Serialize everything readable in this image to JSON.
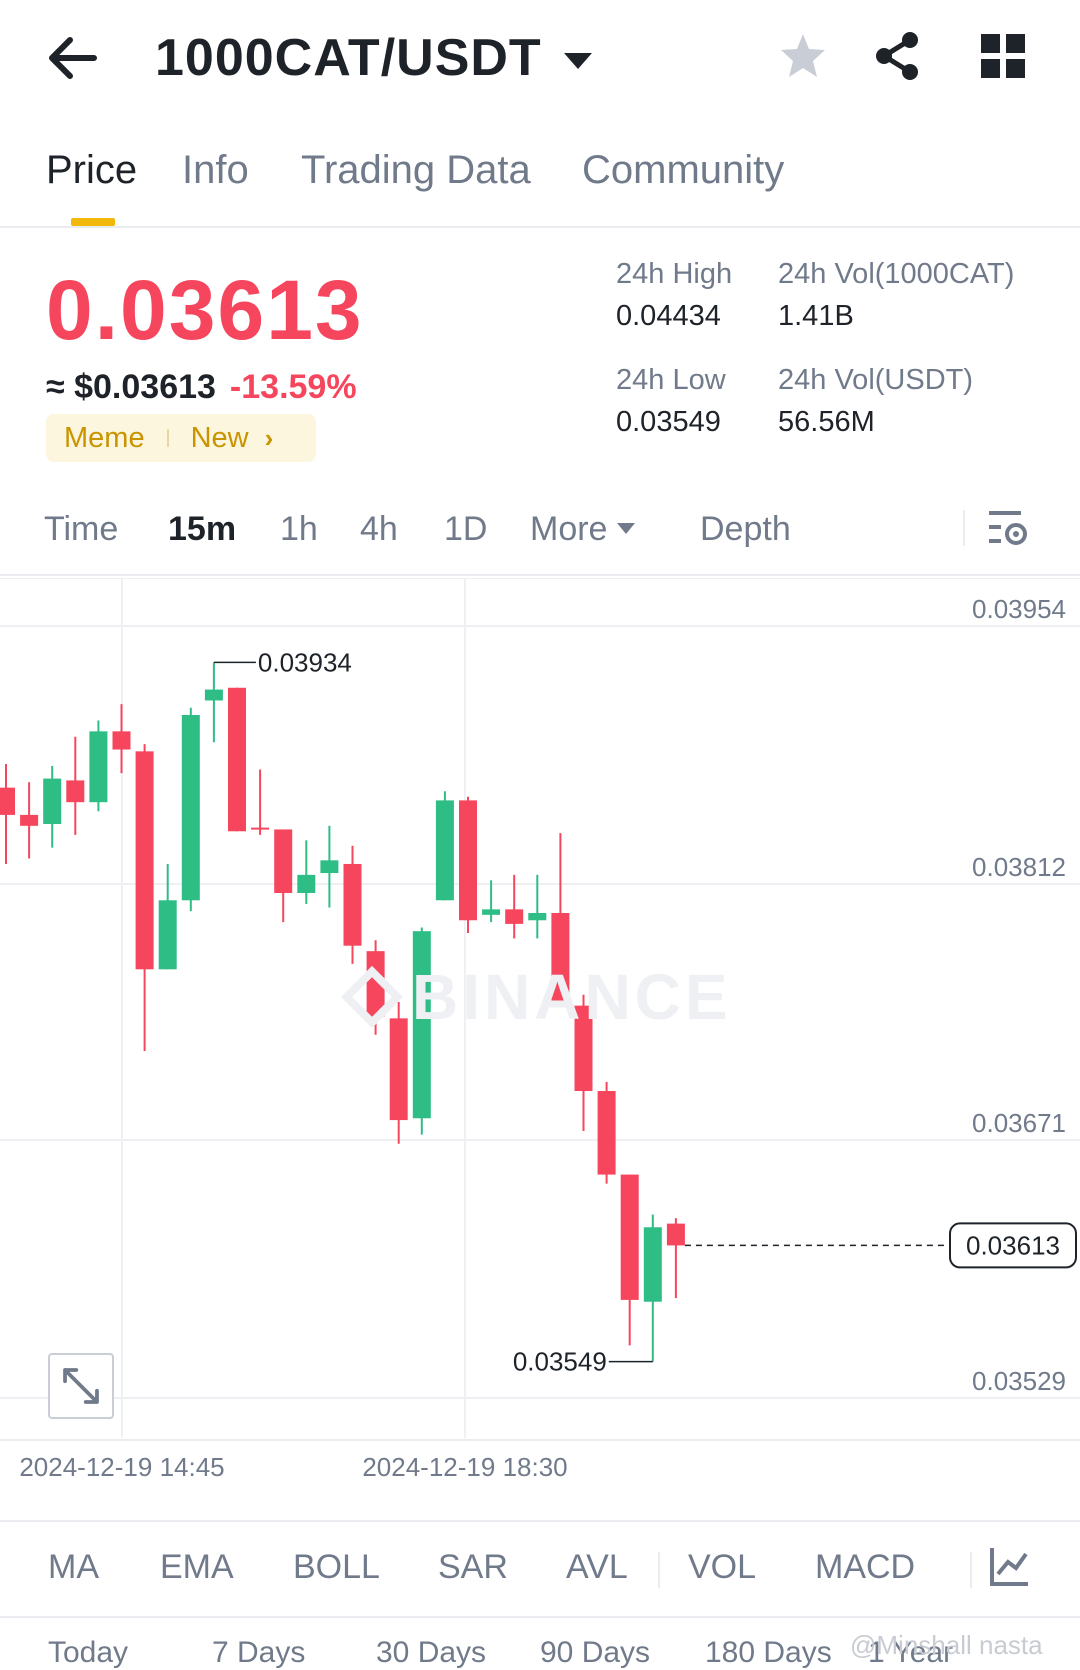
{
  "header": {
    "pair": "1000CAT/USDT",
    "icons": [
      "back-arrow-icon",
      "caret-down-icon",
      "star-icon",
      "share-icon",
      "grid-icon"
    ]
  },
  "tabs": [
    {
      "label": "Price",
      "active": true
    },
    {
      "label": "Info",
      "active": false
    },
    {
      "label": "Trading Data",
      "active": false
    },
    {
      "label": "Community",
      "active": false
    }
  ],
  "price": {
    "last": "0.03613",
    "usd": "≈ $0.03613",
    "change": "-13.59%",
    "tags": [
      "Meme",
      "New"
    ]
  },
  "stats": {
    "high_label": "24h High",
    "high_value": "0.04434",
    "low_label": "24h Low",
    "low_value": "0.03549",
    "vol_base_label": "24h Vol(1000CAT)",
    "vol_base_value": "1.41B",
    "vol_quote_label": "24h Vol(USDT)",
    "vol_quote_value": "56.56M"
  },
  "intervals": {
    "time": "Time",
    "m15": "15m",
    "h1": "1h",
    "h4": "4h",
    "d1": "1D",
    "more": "More",
    "depth": "Depth",
    "active": "15m"
  },
  "colors": {
    "up": "#2ebd85",
    "down": "#f6465d",
    "accent": "#f0b90b"
  },
  "chart_data": {
    "type": "candlestick",
    "interval": "15m",
    "y_ticks": [
      "0.03954",
      "0.03812",
      "0.03671",
      "0.03529"
    ],
    "x_ticks": [
      "2024-12-19 14:45",
      "2024-12-19 18:30"
    ],
    "high_marker": "0.03934",
    "low_marker": "0.03549",
    "last_price": "0.03613",
    "watermark": "BINANCE",
    "candles": [
      {
        "o": 0.03865,
        "h": 0.03878,
        "l": 0.03823,
        "c": 0.0385
      },
      {
        "o": 0.0385,
        "h": 0.03868,
        "l": 0.03826,
        "c": 0.03844
      },
      {
        "o": 0.03845,
        "h": 0.03877,
        "l": 0.03832,
        "c": 0.0387
      },
      {
        "o": 0.03869,
        "h": 0.03893,
        "l": 0.03839,
        "c": 0.03857
      },
      {
        "o": 0.03857,
        "h": 0.03902,
        "l": 0.03852,
        "c": 0.03896
      },
      {
        "o": 0.03896,
        "h": 0.03911,
        "l": 0.03873,
        "c": 0.03886
      },
      {
        "o": 0.03885,
        "h": 0.03889,
        "l": 0.0372,
        "c": 0.03765
      },
      {
        "o": 0.03765,
        "h": 0.03823,
        "l": 0.03765,
        "c": 0.03803
      },
      {
        "o": 0.03803,
        "h": 0.03909,
        "l": 0.03797,
        "c": 0.03905
      },
      {
        "o": 0.03913,
        "h": 0.03934,
        "l": 0.0389,
        "c": 0.03919
      },
      {
        "o": 0.0392,
        "h": 0.0392,
        "l": 0.03841,
        "c": 0.03841
      },
      {
        "o": 0.03843,
        "h": 0.03875,
        "l": 0.03839,
        "c": 0.03842
      },
      {
        "o": 0.03842,
        "h": 0.03842,
        "l": 0.03791,
        "c": 0.03807
      },
      {
        "o": 0.03807,
        "h": 0.03836,
        "l": 0.03801,
        "c": 0.03817
      },
      {
        "o": 0.03818,
        "h": 0.03844,
        "l": 0.03799,
        "c": 0.03825
      },
      {
        "o": 0.03823,
        "h": 0.03833,
        "l": 0.03768,
        "c": 0.03778
      },
      {
        "o": 0.03775,
        "h": 0.03781,
        "l": 0.03729,
        "c": 0.03739
      },
      {
        "o": 0.03738,
        "h": 0.03747,
        "l": 0.03669,
        "c": 0.03682
      },
      {
        "o": 0.03683,
        "h": 0.03788,
        "l": 0.03674,
        "c": 0.03786
      },
      {
        "o": 0.03803,
        "h": 0.03863,
        "l": 0.03803,
        "c": 0.03858
      },
      {
        "o": 0.03858,
        "h": 0.0386,
        "l": 0.03785,
        "c": 0.03792
      },
      {
        "o": 0.03795,
        "h": 0.03814,
        "l": 0.03791,
        "c": 0.03798
      },
      {
        "o": 0.03798,
        "h": 0.03817,
        "l": 0.03782,
        "c": 0.0379
      },
      {
        "o": 0.03792,
        "h": 0.03817,
        "l": 0.03782,
        "c": 0.03796
      },
      {
        "o": 0.03796,
        "h": 0.0384,
        "l": 0.03744,
        "c": 0.03747
      },
      {
        "o": 0.03745,
        "h": 0.03751,
        "l": 0.03676,
        "c": 0.03698
      },
      {
        "o": 0.03698,
        "h": 0.03703,
        "l": 0.03647,
        "c": 0.03652
      },
      {
        "o": 0.03652,
        "h": 0.03652,
        "l": 0.03558,
        "c": 0.03583
      },
      {
        "o": 0.03582,
        "h": 0.0363,
        "l": 0.03549,
        "c": 0.03623
      },
      {
        "o": 0.03625,
        "h": 0.03628,
        "l": 0.03584,
        "c": 0.03613
      }
    ]
  },
  "indicators": [
    "MA",
    "EMA",
    "BOLL",
    "SAR",
    "AVL",
    "VOL",
    "MACD"
  ],
  "ranges": [
    "Today",
    "7 Days",
    "30 Days",
    "90 Days",
    "180 Days",
    "1 Year"
  ],
  "credit": "@Minshall nasta"
}
